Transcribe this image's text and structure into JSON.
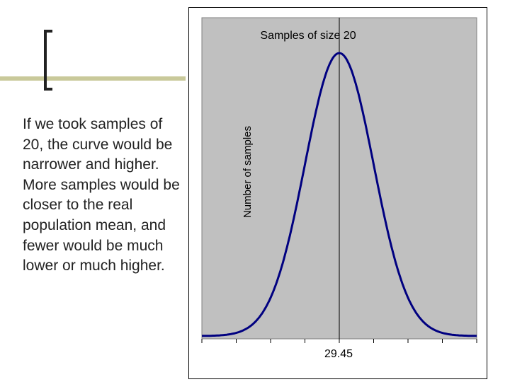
{
  "slide": {
    "body_text": "If we took samples of 20, the curve would be narrower and higher.  More samples would be closer to the real population mean, and fewer would be much lower or much higher."
  },
  "chart_data": {
    "type": "line",
    "title": "Samples of size 20",
    "ylabel": "Number of samples",
    "xlabel": "",
    "mean": 29.45,
    "x_tick_labels": [
      "29.45"
    ],
    "y_tick_labels": [],
    "grid": false,
    "legend": "none",
    "plot_background": "#c0c0c0",
    "series": [
      {
        "color": "#000080",
        "x": [
          -4.0,
          -3.5,
          -3.0,
          -2.5,
          -2.0,
          -1.75,
          -1.5,
          -1.25,
          -1.0,
          -0.75,
          -0.5,
          -0.25,
          0.0,
          0.25,
          0.5,
          0.75,
          1.0,
          1.25,
          1.5,
          1.75,
          2.0,
          2.5,
          3.0,
          3.5,
          4.0
        ],
        "y": [
          0.0003,
          0.0022,
          0.011,
          0.044,
          0.135,
          0.216,
          0.325,
          0.458,
          0.607,
          0.755,
          0.882,
          0.969,
          1.0,
          0.969,
          0.882,
          0.755,
          0.607,
          0.458,
          0.325,
          0.216,
          0.135,
          0.044,
          0.011,
          0.0022,
          0.0003
        ]
      }
    ]
  }
}
